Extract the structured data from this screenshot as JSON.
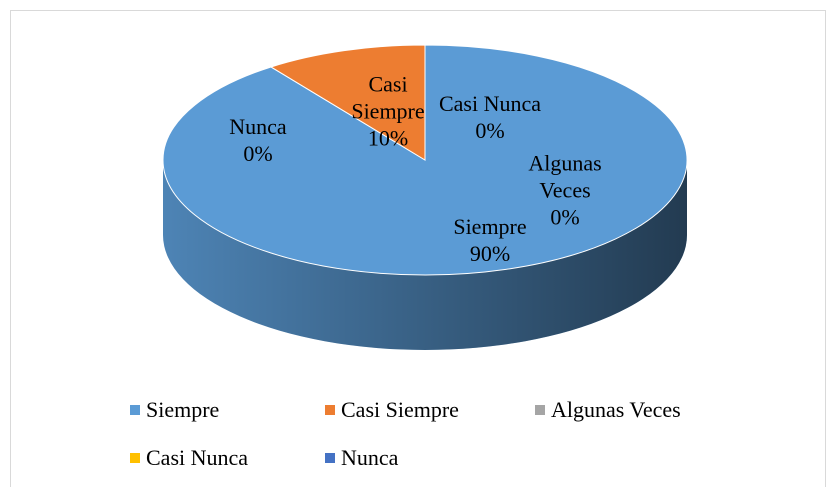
{
  "chart_data": {
    "type": "pie3d",
    "categories": [
      "Siempre",
      "Casi Siempre",
      "Algunas Veces",
      "Casi Nunca",
      "Nunca"
    ],
    "values": [
      90,
      10,
      0,
      0,
      0
    ],
    "value_labels": [
      "90%",
      "10%",
      "0%",
      "0%",
      "0%"
    ],
    "colors": [
      "#5b9bd5",
      "#ed7d31",
      "#a5a5a5",
      "#ffc000",
      "#4472c4"
    ],
    "legend": "bottom"
  }
}
